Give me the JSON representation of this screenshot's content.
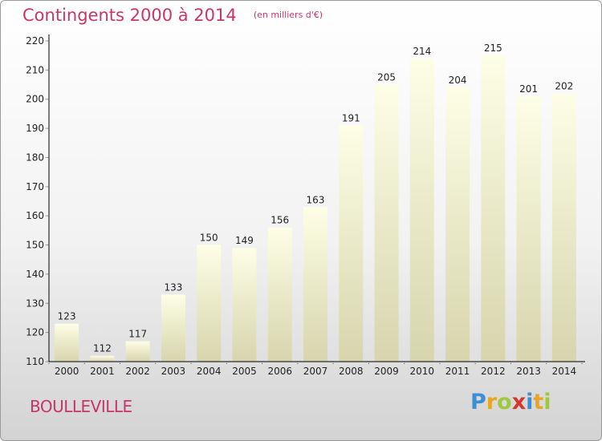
{
  "header": {
    "title": "Contingents 2000 à 2014",
    "subtitle": "(en milliers d'€)"
  },
  "town": "BOULLEVILLE",
  "logo": {
    "text": "Proxiti",
    "letters": [
      {
        "char": "P",
        "color": "#3a8fd6"
      },
      {
        "char": "r",
        "color": "#e8a623"
      },
      {
        "char": "o",
        "color": "#9fc93c"
      },
      {
        "char": "x",
        "color": "#d6372b"
      },
      {
        "char": "i",
        "color": "#3a8fd6"
      },
      {
        "char": "t",
        "color": "#e8a623"
      },
      {
        "char": "i",
        "color": "#9fc93c"
      }
    ]
  },
  "colors": {
    "accent": "#c8356a",
    "bar_top": "#fdfee6",
    "bar_bottom": "#d6d5ad",
    "axis": "#000000"
  },
  "chart_data": {
    "type": "bar",
    "categories": [
      "2000",
      "2001",
      "2002",
      "2003",
      "2004",
      "2005",
      "2006",
      "2007",
      "2008",
      "2009",
      "2010",
      "2011",
      "2012",
      "2013",
      "2014"
    ],
    "values": [
      123,
      112,
      117,
      133,
      150,
      149,
      156,
      163,
      191,
      205,
      214,
      204,
      215,
      201,
      202
    ],
    "title": "Contingents 2000 à 2014",
    "xlabel": "",
    "ylabel": "",
    "ylim": [
      110,
      220
    ],
    "yticks": [
      110,
      120,
      130,
      140,
      150,
      160,
      170,
      180,
      190,
      200,
      210,
      220
    ],
    "grid": false,
    "data_labels": true
  }
}
